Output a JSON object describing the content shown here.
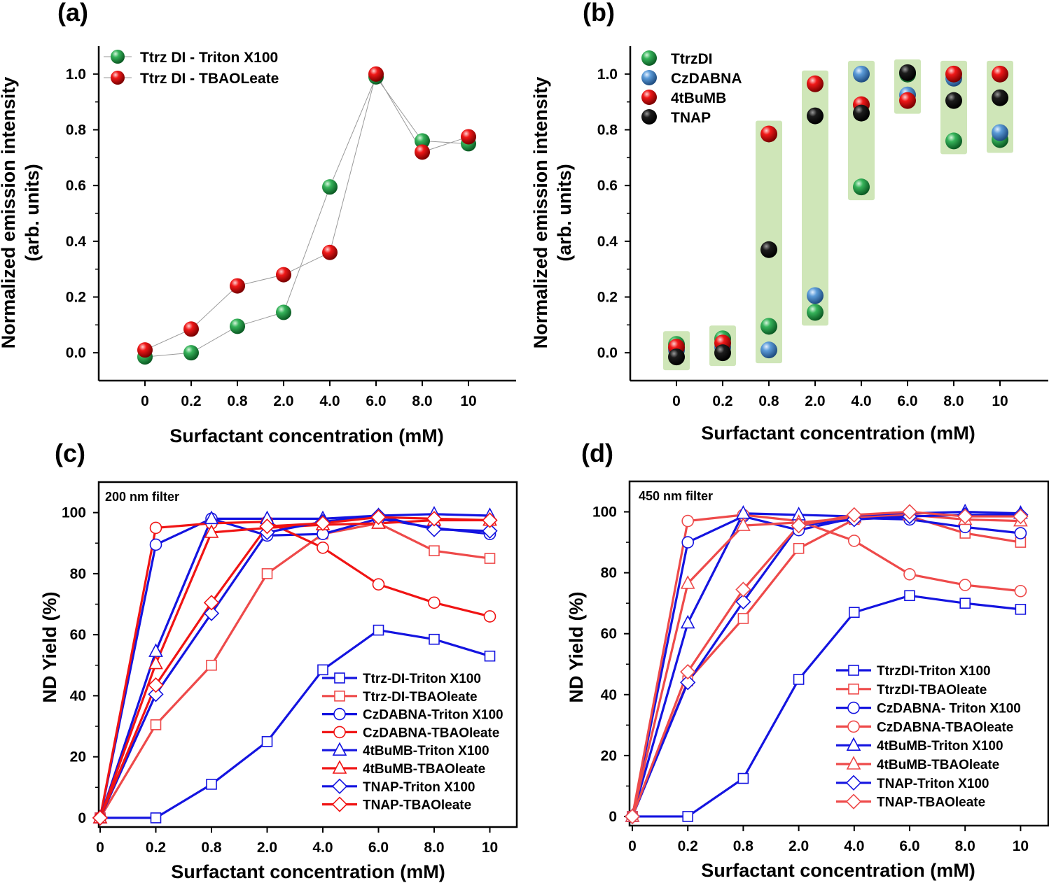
{
  "figure": {
    "panels": [
      "(a)",
      "(b)",
      "(c)",
      "(d)"
    ]
  },
  "colors": {
    "green": "#1f9e48",
    "red": "#e01010",
    "blue_sphere": "#4a8fd0",
    "black": "#111111",
    "band": "#cfe6b8",
    "line_blue": "#1414e0",
    "line_red": "#f01414",
    "line_lightred": "#ee4a4a",
    "connector": "#9a9a9a"
  },
  "chart_data": [
    {
      "id": "a",
      "type": "scatter",
      "panel_label": "(a)",
      "xlabel": "Surfactant concentration (mM)",
      "ylabel_line1": "Normalized emission intensity",
      "ylabel_line2": "(arb. units)",
      "categories": [
        "0",
        "0.2",
        "0.8",
        "2.0",
        "4.0",
        "6.0",
        "8.0",
        "10"
      ],
      "ylim": [
        -0.1,
        1.1
      ],
      "yticks": [
        "0.0",
        "0.2",
        "0.4",
        "0.6",
        "0.8",
        "1.0"
      ],
      "ytick_values": [
        0,
        0.2,
        0.4,
        0.6,
        0.8,
        1.0
      ],
      "legend": "top-left",
      "series": [
        {
          "name": "Ttrz DI - Triton X100",
          "color": "green",
          "values": [
            -0.015,
            0.0,
            0.095,
            0.145,
            0.595,
            0.99,
            0.76,
            0.75
          ]
        },
        {
          "name": "Ttrz DI - TBAOLeate",
          "color": "red",
          "values": [
            0.01,
            0.085,
            0.24,
            0.28,
            0.36,
            1.0,
            0.72,
            0.775
          ]
        }
      ]
    },
    {
      "id": "b",
      "type": "scatter",
      "panel_label": "(b)",
      "xlabel": "Surfactant concentration (mM)",
      "ylabel_line1": "Normalized emission intensity",
      "ylabel_line2": "(arb. units)",
      "categories": [
        "0",
        "0.2",
        "0.8",
        "2.0",
        "4.0",
        "6.0",
        "8.0",
        "10"
      ],
      "ylim": [
        -0.1,
        1.1
      ],
      "yticks": [
        "0.0",
        "0.2",
        "0.4",
        "0.6",
        "0.8",
        "1.0"
      ],
      "ytick_values": [
        0,
        0.2,
        0.4,
        0.6,
        0.8,
        1.0
      ],
      "legend": "top-left",
      "series": [
        {
          "name": "TtrzDI",
          "color": "green",
          "values": [
            0.03,
            0.05,
            0.095,
            0.145,
            0.595,
            1.0,
            0.76,
            0.765
          ]
        },
        {
          "name": "CzDABNA",
          "color": "blue_sphere",
          "values": [
            0.01,
            0.02,
            0.01,
            0.205,
            1.0,
            0.925,
            0.985,
            0.79
          ]
        },
        {
          "name": "4tBuMB",
          "color": "red",
          "values": [
            0.02,
            0.035,
            0.785,
            0.965,
            0.89,
            0.905,
            1.0,
            1.0
          ]
        },
        {
          "name": "TNAP",
          "color": "black",
          "values": [
            -0.015,
            0.0,
            0.37,
            0.85,
            0.86,
            1.005,
            0.905,
            0.915
          ]
        }
      ]
    },
    {
      "id": "c",
      "type": "line",
      "panel_label": "(c)",
      "annotation": "200 nm filter",
      "xlabel": "Surfactant concentration (mM)",
      "ylabel": "ND Yield (%)",
      "categories": [
        "0",
        "0.2",
        "0.8",
        "2.0",
        "4.0",
        "6.0",
        "8.0",
        "10"
      ],
      "ylim": [
        -3,
        110
      ],
      "yticks": [
        "0",
        "20",
        "40",
        "60",
        "80",
        "100"
      ],
      "ytick_values": [
        0,
        20,
        40,
        60,
        80,
        100
      ],
      "legend": "bottom-right",
      "series": [
        {
          "name": "Ttrz-DI-Triton X100",
          "color": "line_blue",
          "marker": "square",
          "values": [
            0,
            0,
            11,
            25,
            48.5,
            61.5,
            58.5,
            53
          ]
        },
        {
          "name": "Ttrz-DI-TBAOleate",
          "color": "line_lightred",
          "marker": "square",
          "values": [
            0,
            30.5,
            50,
            80,
            93,
            96.5,
            87.5,
            85
          ]
        },
        {
          "name": "CzDABNA-Triton X100",
          "color": "line_blue",
          "marker": "circle",
          "values": [
            0,
            89.5,
            98,
            92.5,
            93,
            98,
            95,
            93
          ]
        },
        {
          "name": "CzDABNA-TBAOleate",
          "color": "line_red",
          "marker": "circle",
          "values": [
            0,
            95,
            96.5,
            97,
            88.5,
            76.5,
            70.5,
            66
          ]
        },
        {
          "name": "4tBuMB-Triton X100",
          "color": "line_blue",
          "marker": "triangle",
          "values": [
            0,
            54.5,
            98,
            98,
            98,
            99,
            99.5,
            99
          ]
        },
        {
          "name": "4tBuMB-TBAOleate",
          "color": "line_red",
          "marker": "triangle",
          "values": [
            0,
            50.5,
            93.5,
            95,
            96,
            96.5,
            97.5,
            97.5
          ]
        },
        {
          "name": "TNAP-Triton X100",
          "color": "line_blue",
          "marker": "diamond",
          "values": [
            0,
            40.5,
            67,
            93.5,
            97,
            99,
            94.5,
            94
          ]
        },
        {
          "name": "TNAP-TBAOleate",
          "color": "line_red",
          "marker": "diamond",
          "values": [
            0,
            43.5,
            70.5,
            95.5,
            96.5,
            98.5,
            98,
            97.5
          ]
        }
      ]
    },
    {
      "id": "d",
      "type": "line",
      "panel_label": "(d)",
      "annotation": "450 nm filter",
      "xlabel": "Surfactant concentration (mM)",
      "ylabel": "ND Yield (%)",
      "categories": [
        "0",
        "0.2",
        "0.8",
        "2.0",
        "4.0",
        "6.0",
        "8.0",
        "10"
      ],
      "ylim": [
        -3,
        110
      ],
      "yticks": [
        "0",
        "20",
        "40",
        "60",
        "80",
        "100"
      ],
      "ytick_values": [
        0,
        20,
        40,
        60,
        80,
        100
      ],
      "legend": "bottom-right",
      "series": [
        {
          "name": "TtrzDI-Triton X100",
          "color": "line_blue",
          "marker": "square",
          "values": [
            0,
            0,
            12.5,
            45,
            67,
            72.5,
            70,
            68
          ]
        },
        {
          "name": "TtrzDI-TBAOleate",
          "color": "line_lightred",
          "marker": "square",
          "values": [
            0,
            44.5,
            65,
            88,
            97.5,
            98.5,
            93,
            90
          ]
        },
        {
          "name": "CzDABNA- Triton X100",
          "color": "line_blue",
          "marker": "circle",
          "values": [
            0,
            90,
            98.5,
            94,
            98,
            97.5,
            95,
            93
          ]
        },
        {
          "name": "CzDABNA-TBAOleate",
          "color": "line_lightred",
          "marker": "circle",
          "values": [
            0,
            97,
            99,
            97,
            90.5,
            79.5,
            76,
            74
          ]
        },
        {
          "name": "4tBuMB-Triton X100",
          "color": "line_blue",
          "marker": "triangle",
          "values": [
            0,
            63.5,
            99.5,
            99,
            98.5,
            99.5,
            100,
            99.5
          ]
        },
        {
          "name": "4tBuMB-TBAOleate",
          "color": "line_lightred",
          "marker": "triangle",
          "values": [
            0,
            76.5,
            95.5,
            96.5,
            98,
            99,
            97.5,
            97
          ]
        },
        {
          "name": "TNAP-Triton X100",
          "color": "line_blue",
          "marker": "diamond",
          "values": [
            0,
            44,
            70.5,
            95.5,
            97.5,
            98.5,
            99,
            99
          ]
        },
        {
          "name": "TNAP-TBAOleate",
          "color": "line_lightred",
          "marker": "diamond",
          "values": [
            0,
            47.5,
            74.5,
            95.5,
            99,
            100,
            98.5,
            98.5
          ]
        }
      ]
    }
  ]
}
